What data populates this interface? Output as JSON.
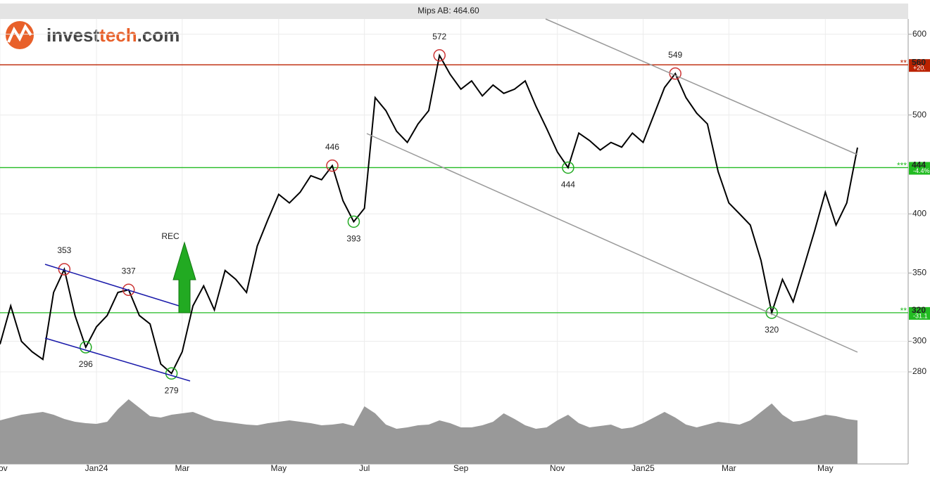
{
  "chart_data": {
    "type": "line",
    "title": "Mips AB: 464.60",
    "logo": [
      "invest",
      "tech",
      ".com"
    ],
    "signal": "REC",
    "log_scale": true,
    "grid": true,
    "ylim": [
      273,
      621
    ],
    "yticks": [
      280,
      300,
      350,
      400,
      500,
      600
    ],
    "categories": [
      "Nov",
      null,
      null,
      null,
      null,
      null,
      null,
      null,
      null,
      "Jan24",
      null,
      null,
      null,
      null,
      null,
      null,
      null,
      "Mar",
      null,
      null,
      null,
      null,
      null,
      null,
      null,
      null,
      "May",
      null,
      null,
      null,
      null,
      null,
      null,
      null,
      "Jul",
      null,
      null,
      null,
      null,
      null,
      null,
      null,
      null,
      "Sep",
      null,
      null,
      null,
      null,
      null,
      null,
      null,
      null,
      "Nov",
      null,
      null,
      null,
      null,
      null,
      null,
      null,
      "Jan25",
      null,
      null,
      null,
      null,
      null,
      null,
      null,
      "Mar",
      null,
      null,
      null,
      null,
      null,
      null,
      null,
      null,
      "May",
      null,
      null,
      null
    ],
    "series": [
      {
        "color": "#000000",
        "values": [
          298,
          325,
          300,
          293,
          288,
          335,
          353,
          318,
          296,
          310,
          318,
          335,
          337,
          318,
          312,
          285,
          279,
          293,
          325,
          340,
          322,
          352,
          345,
          335,
          372,
          395,
          418,
          410,
          420,
          436,
          432,
          446,
          412,
          393,
          405,
          520,
          505,
          482,
          470,
          490,
          505,
          572,
          548,
          530,
          540,
          522,
          535,
          525,
          530,
          540,
          510,
          485,
          460,
          444,
          480,
          472,
          462,
          470,
          465,
          480,
          470,
          500,
          532,
          549,
          520,
          502,
          490,
          440,
          410,
          400,
          390,
          360,
          320,
          345,
          328,
          355,
          385,
          420,
          390,
          410,
          464.6
        ]
      }
    ],
    "volume": {
      "color": "#999999",
      "values": [
        62,
        66,
        70,
        72,
        74,
        70,
        64,
        60,
        58,
        57,
        60,
        78,
        92,
        80,
        68,
        66,
        70,
        72,
        74,
        68,
        62,
        60,
        58,
        56,
        55,
        58,
        60,
        62,
        60,
        58,
        55,
        56,
        58,
        54,
        82,
        72,
        56,
        50,
        52,
        55,
        56,
        62,
        58,
        52,
        52,
        55,
        60,
        72,
        64,
        55,
        50,
        52,
        62,
        70,
        58,
        52,
        54,
        56,
        50,
        52,
        58,
        66,
        74,
        66,
        56,
        52,
        56,
        60,
        58,
        56,
        62,
        74,
        86,
        70,
        60,
        62,
        66,
        70,
        68,
        64,
        62
      ]
    },
    "annotations": [
      {
        "value": 353,
        "color": "#cc3333"
      },
      {
        "value": 296,
        "color": "#22aa22"
      },
      {
        "value": 337,
        "color": "#cc3333"
      },
      {
        "value": 279,
        "color": "#22aa22"
      },
      {
        "value": 446,
        "color": "#cc3333"
      },
      {
        "value": 393,
        "color": "#22aa22"
      },
      {
        "value": 572,
        "color": "#cc3333"
      },
      {
        "value": 444,
        "color": "#22aa22"
      },
      {
        "value": 549,
        "color": "#cc3333"
      },
      {
        "value": 320,
        "color": "#22aa22"
      }
    ],
    "levels": [
      {
        "value": 560,
        "change": "+20.",
        "stars": "**",
        "color": "#bb2200"
      },
      {
        "value": 444,
        "change": "-4.4%",
        "stars": "***",
        "color": "#22bb22"
      },
      {
        "value": 320,
        "change": "-31.1",
        "stars": "**",
        "color": "#22bb22"
      }
    ]
  }
}
